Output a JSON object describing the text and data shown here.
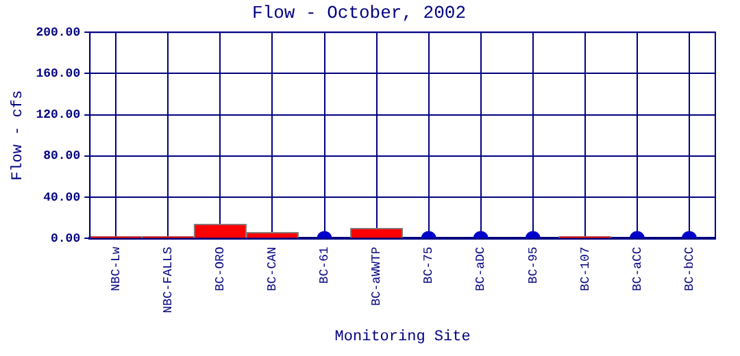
{
  "chart_data": {
    "type": "bar",
    "title": "Flow - October, 2002",
    "xlabel": "Monitoring Site",
    "ylabel": "Flow - cfs",
    "categories": [
      "NBC-Lw",
      "NBC-FALLS",
      "BC-ORO",
      "BC-CAN",
      "BC-61",
      "BC-aWWTP",
      "BC-75",
      "BC-aDC",
      "BC-95",
      "BC-107",
      "BC-aCC",
      "BC-bCC"
    ],
    "series": [
      {
        "color": "#ff0000",
        "values": [
          2,
          2,
          14,
          6,
          null,
          10,
          null,
          null,
          null,
          2,
          null,
          null
        ]
      },
      {
        "type": "scatter",
        "color": "#0000cc",
        "marker": "circle",
        "values": [
          null,
          null,
          null,
          null,
          0,
          null,
          0,
          0,
          0,
          null,
          0,
          0
        ]
      }
    ],
    "ylim": [
      0,
      200
    ],
    "yticks": [
      {
        "value": 0,
        "label": "0.00"
      },
      {
        "value": 40,
        "label": "40.00"
      },
      {
        "value": 80,
        "label": "80.00"
      },
      {
        "value": 120,
        "label": "120.00"
      },
      {
        "value": 160,
        "label": "160.00"
      },
      {
        "value": 200,
        "label": "200.00"
      }
    ],
    "grid": true,
    "legend": false
  }
}
